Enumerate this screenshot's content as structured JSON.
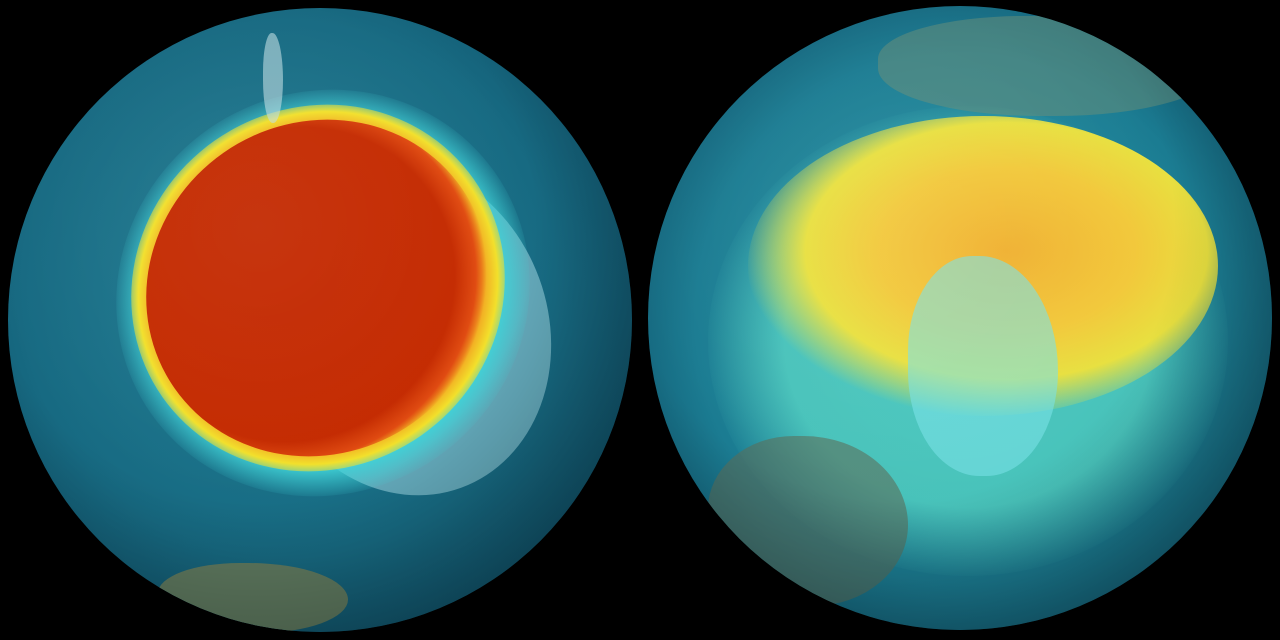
{
  "colors": {
    "background": "#000000",
    "ocean": "#176a82",
    "ozone_hole_core": "#c42a00",
    "ozone_edge_yellow": "#f2e02a",
    "ozone_edge_cyan": "#3fd3d8",
    "ozone_moderate_orange": "#f2b030"
  },
  "globes": [
    {
      "view": "south-pole",
      "feature": "ozone-hole"
    },
    {
      "view": "north-pole",
      "feature": "ozone-field"
    }
  ]
}
